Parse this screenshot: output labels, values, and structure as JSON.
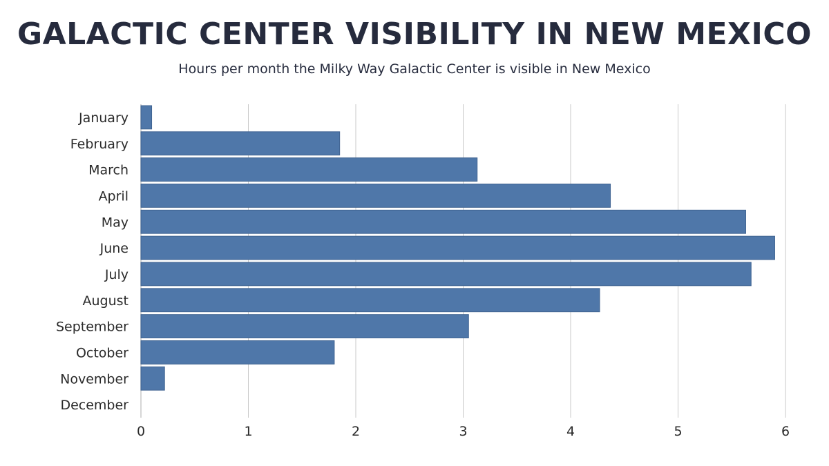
{
  "header": {
    "title": "GALACTIC CENTER VISIBILITY IN NEW MEXICO",
    "subtitle": "Hours per month the Milky Way Galactic Center is visible in New Mexico"
  },
  "colors": {
    "bar": "#4f77a9",
    "bar_edge": "#3f6391",
    "grid": "#c8c8c8",
    "title": "#262b3d"
  },
  "chart_data": {
    "type": "bar",
    "orientation": "horizontal",
    "title": "GALACTIC CENTER VISIBILITY IN NEW MEXICO",
    "subtitle": "Hours per month the Milky Way Galactic Center is visible in New Mexico",
    "categories": [
      "January",
      "February",
      "March",
      "April",
      "May",
      "June",
      "July",
      "August",
      "September",
      "October",
      "November",
      "December"
    ],
    "values": [
      0.1,
      1.85,
      3.13,
      4.37,
      5.63,
      5.9,
      5.68,
      4.27,
      3.05,
      1.8,
      0.22,
      0
    ],
    "xlim": [
      0,
      6
    ],
    "xticks": [
      "0",
      "1",
      "2",
      "3",
      "4",
      "5",
      "6"
    ],
    "xlabel": "",
    "ylabel": "",
    "grid": "vertical",
    "legend": "none"
  }
}
